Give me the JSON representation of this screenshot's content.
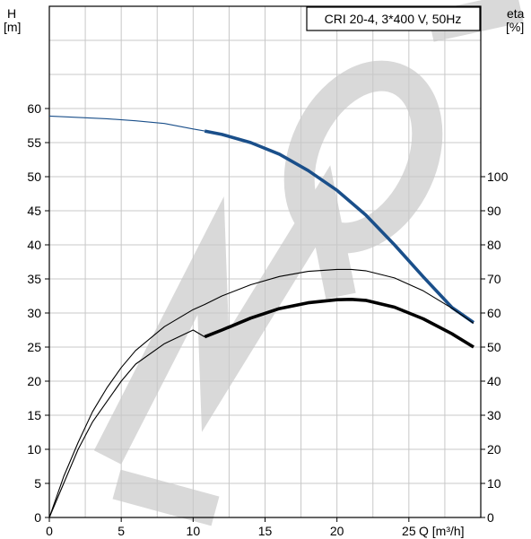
{
  "chart_data": {
    "type": "line",
    "title": "CRI 20-4, 3*400 V, 50Hz",
    "watermark": "MAO",
    "xlabel": "Q [m³/h]",
    "ylabel_left": {
      "top": "H",
      "bottom": "[m]"
    },
    "ylabel_right": {
      "top": "eta",
      "bottom": "[%]"
    },
    "xlim": [
      0,
      30
    ],
    "ylim_left": [
      0,
      75
    ],
    "ylim_right": [
      0,
      150
    ],
    "x_ticks": [
      "0",
      "5",
      "10",
      "15",
      "20",
      "25"
    ],
    "x_tick_values": [
      0,
      5,
      10,
      15,
      20,
      25
    ],
    "y_left_ticks": [
      "0",
      "5",
      "10",
      "15",
      "20",
      "25",
      "30",
      "35",
      "40",
      "45",
      "50",
      "55",
      "60"
    ],
    "y_left_tick_values": [
      0,
      5,
      10,
      15,
      20,
      25,
      30,
      35,
      40,
      45,
      50,
      55,
      60
    ],
    "y_right_ticks": [
      "0",
      "10",
      "20",
      "30",
      "40",
      "50",
      "60",
      "70",
      "80",
      "90",
      "100"
    ],
    "y_right_tick_values": [
      0,
      10,
      20,
      30,
      40,
      50,
      60,
      70,
      80,
      90,
      100
    ],
    "grid": true,
    "series": [
      {
        "axis": "left",
        "color": "#1a4f8a",
        "x": [
          0,
          2,
          4,
          6,
          8,
          10,
          10.8,
          12,
          14,
          16,
          18,
          20,
          22,
          24,
          26,
          28,
          29.5
        ],
        "y": [
          58.9,
          58.7,
          58.5,
          58.2,
          57.8,
          57.0,
          56.7,
          56.2,
          55.0,
          53.3,
          50.9,
          48.0,
          44.4,
          40.0,
          35.3,
          30.8,
          28.6
        ],
        "bold_from_x": 10.8
      },
      {
        "axis": "right",
        "color": "#000000",
        "x": [
          0,
          1,
          2,
          3,
          4,
          5,
          6,
          8,
          10,
          10.8,
          12,
          14,
          16,
          18,
          20,
          21,
          22,
          24,
          26,
          28,
          29.5
        ],
        "y": [
          0,
          12,
          22,
          31,
          38,
          44,
          49,
          56,
          61,
          62.5,
          65,
          68.3,
          70.7,
          72.2,
          72.8,
          72.8,
          72.4,
          70.3,
          66.5,
          61.4,
          57
        ],
        "bold_from_x": 99
      },
      {
        "axis": "right",
        "color": "#000000",
        "x": [
          0,
          1,
          2,
          3,
          4,
          5,
          6,
          8,
          10,
          10.8,
          12,
          14,
          16,
          18,
          20,
          21,
          22,
          24,
          26,
          28,
          29.5
        ],
        "y": [
          0,
          10,
          20,
          28,
          34,
          40,
          45,
          51,
          55,
          53,
          55,
          58.5,
          61.3,
          63,
          63.9,
          64,
          63.7,
          61.7,
          58.3,
          53.9,
          50
        ],
        "bold_from_x": 10.8
      }
    ]
  }
}
